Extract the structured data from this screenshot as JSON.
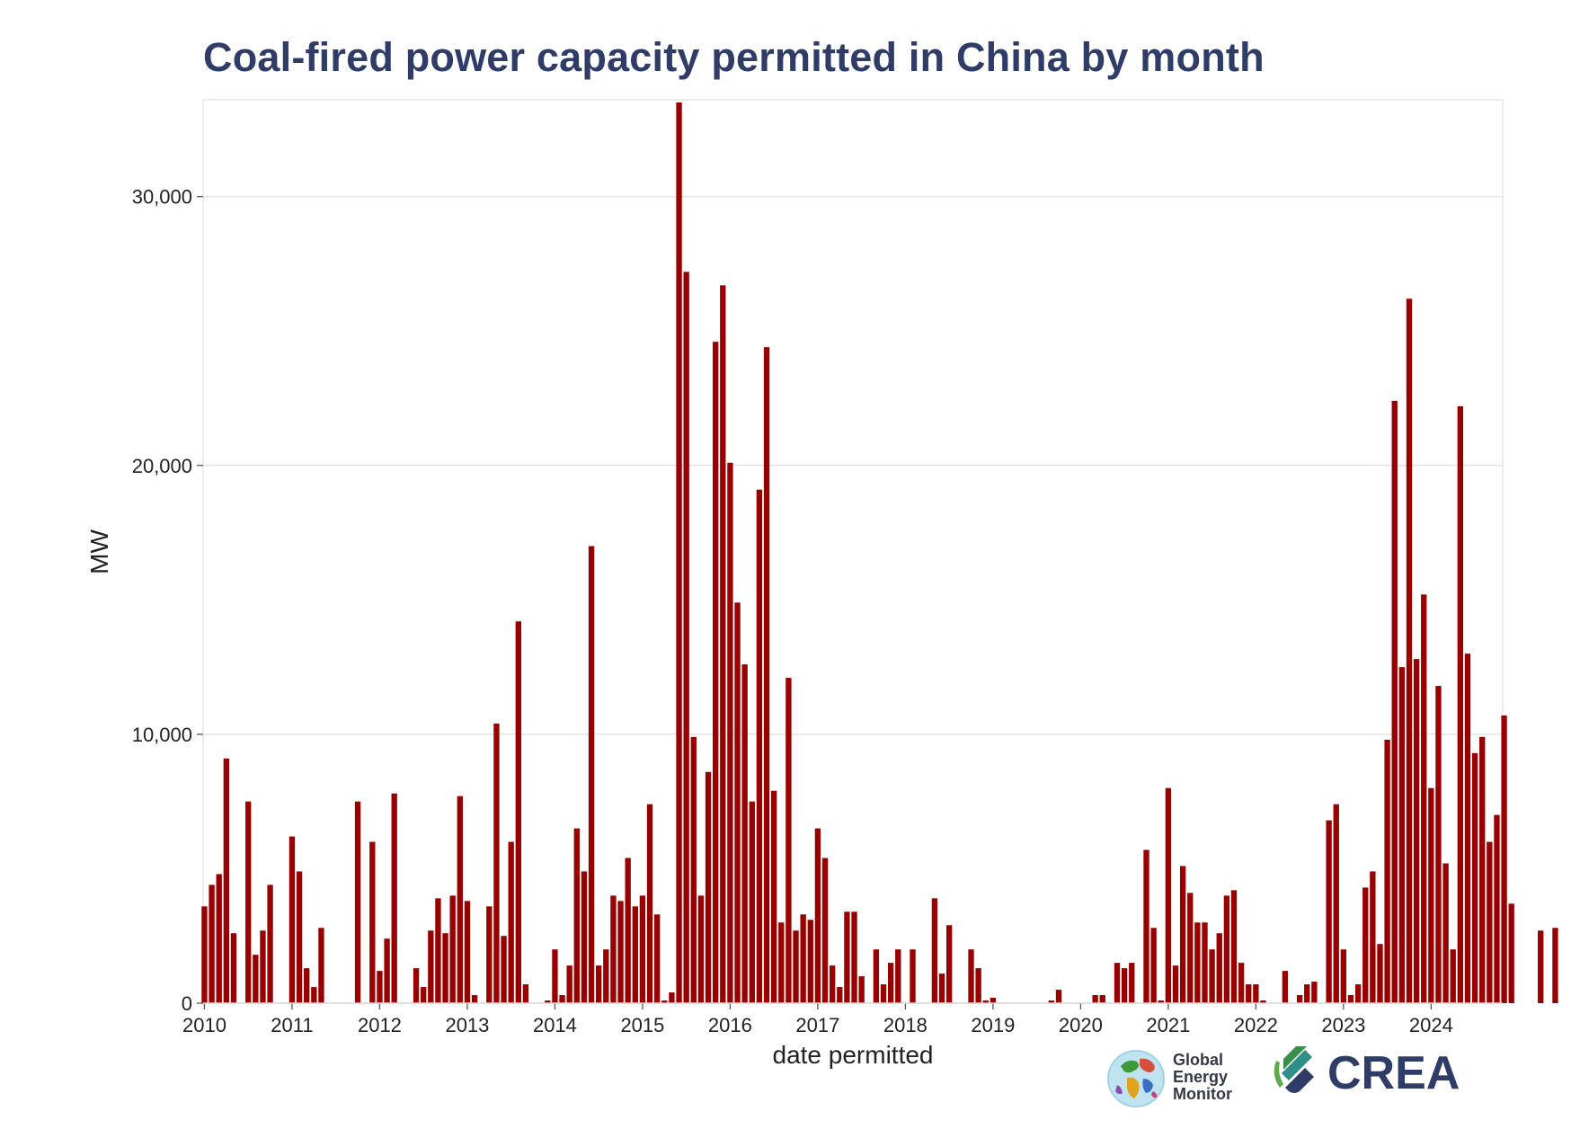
{
  "chart_data": {
    "type": "bar",
    "title": "Coal-fired power capacity permitted in China by month",
    "xlabel": "date permitted",
    "ylabel": "MW",
    "ylim": [
      0,
      33600
    ],
    "xlim": [
      2009.985,
      2024.817
    ],
    "yticks": [
      0,
      10000,
      20000,
      30000
    ],
    "ytick_labels": [
      "0",
      "10,000",
      "20,000",
      "30,000"
    ],
    "xticks": [
      2010,
      2011,
      2012,
      2013,
      2014,
      2015,
      2016,
      2017,
      2018,
      2019,
      2020,
      2021,
      2022,
      2023,
      2024
    ],
    "xtick_labels": [
      "2010",
      "2011",
      "2012",
      "2013",
      "2014",
      "2015",
      "2016",
      "2017",
      "2018",
      "2019",
      "2020",
      "2021",
      "2022",
      "2023",
      "2024"
    ],
    "grid": "horizontal",
    "bar_color": "#990000",
    "start": {
      "year": 2010,
      "month": 1
    },
    "unit": "MW per month",
    "values": [
      3600,
      4400,
      4800,
      9100,
      2600,
      0,
      7500,
      1800,
      2700,
      4400,
      0,
      0,
      6200,
      4900,
      1300,
      600,
      2800,
      0,
      0,
      0,
      0,
      7500,
      0,
      6000,
      1200,
      2400,
      7800,
      0,
      0,
      1300,
      600,
      2700,
      3900,
      2600,
      4000,
      7700,
      3800,
      300,
      0,
      3600,
      10400,
      2500,
      6000,
      14200,
      700,
      0,
      0,
      100,
      2000,
      300,
      1400,
      6500,
      4900,
      17000,
      1400,
      2000,
      4000,
      3800,
      5400,
      3600,
      4000,
      7400,
      3300,
      100,
      400,
      33500,
      27200,
      9900,
      4000,
      8600,
      24600,
      26700,
      20100,
      14900,
      12600,
      7500,
      19100,
      24400,
      7900,
      3000,
      12100,
      2700,
      3300,
      3100,
      6500,
      5400,
      1400,
      600,
      3400,
      3400,
      1000,
      0,
      2000,
      700,
      1500,
      2000,
      0,
      2000,
      0,
      0,
      3900,
      1100,
      2900,
      0,
      0,
      2000,
      1300,
      100,
      200,
      0,
      0,
      0,
      0,
      0,
      0,
      0,
      100,
      500,
      0,
      0,
      0,
      0,
      300,
      300,
      0,
      1500,
      1300,
      1500,
      0,
      5700,
      2800,
      100,
      8000,
      1400,
      5100,
      4100,
      3000,
      3000,
      2000,
      2600,
      4000,
      4200,
      1500,
      700,
      700,
      100,
      0,
      0,
      1200,
      0,
      300,
      700,
      800,
      0,
      6800,
      7400,
      2000,
      300,
      700,
      4300,
      4900,
      2200,
      9800,
      22400,
      12500,
      26200,
      12800,
      15200,
      8000,
      11800,
      5200,
      2000,
      22200,
      13000,
      9300,
      9900,
      6000,
      7000,
      10700,
      3700,
      0,
      0,
      0,
      2700,
      0,
      2800
    ]
  },
  "logos": {
    "gem_lines": [
      "Global",
      "Energy",
      "Monitor"
    ],
    "crea_text": "CREA"
  }
}
